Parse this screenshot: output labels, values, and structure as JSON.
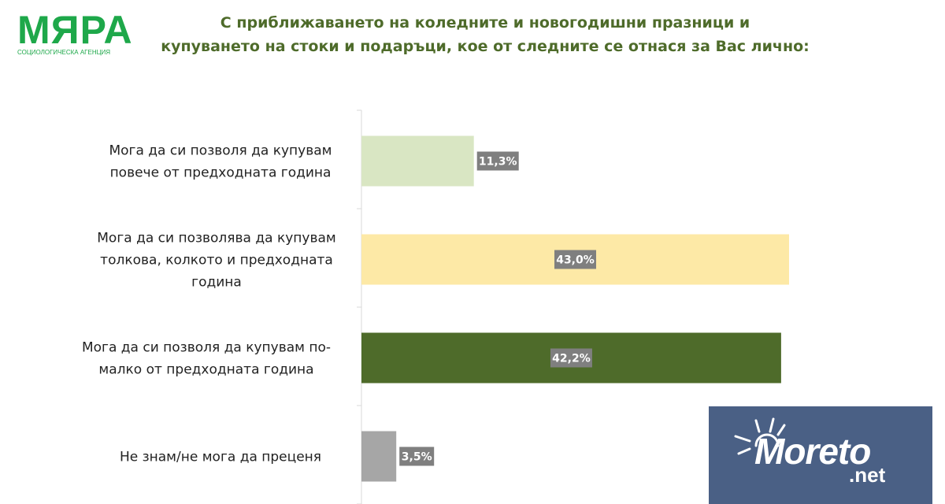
{
  "logo": {
    "name": "МЯРА",
    "subtitle": "СОЦИОЛОГИЧЕСКА АГЕНЦИЯ"
  },
  "chart_data": {
    "type": "bar",
    "orientation": "horizontal",
    "title_lines": [
      "С приближаването на коледните и новогодишни празници и",
      "купуването на стоки и подаръци, кое от следните се отнася за Вас лично:"
    ],
    "categories": [
      [
        "Мога да си позволя да купувам",
        "повече от предходната година"
      ],
      [
        "Мога да си позволява да купувам",
        "толкова, колкото и предходната",
        "година"
      ],
      [
        "Мога да си позволя да купувам по-",
        "малко от предходната година"
      ],
      [
        "Не знам/не мога да преценя"
      ]
    ],
    "values": [
      11.3,
      43.0,
      42.2,
      3.5
    ],
    "data_labels": [
      "11,3%",
      "43,0%",
      "42,2%",
      "3,5%"
    ],
    "colors": [
      "#d9e6c3",
      "#fde9a6",
      "#4e6b2a",
      "#a6a6a6"
    ],
    "label_box_color": "#7f7f7f",
    "xlim": [
      0,
      43
    ],
    "grid": false
  },
  "watermark": {
    "text": "Moreto",
    "suffix": ".net",
    "background": "#4a6085"
  }
}
